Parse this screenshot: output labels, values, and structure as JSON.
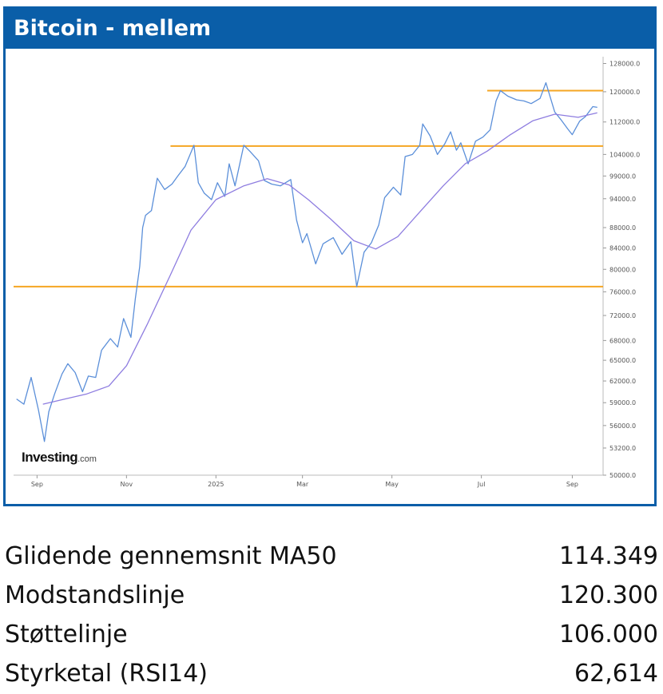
{
  "header": {
    "title": "Bitcoin - mellem"
  },
  "logo": {
    "main": "Investing",
    "suffix": ".com"
  },
  "colors": {
    "header_bg": "#0a5ea8",
    "price_line": "#5b8fd9",
    "ma_line": "#8e7de0",
    "level_line": "#f5a623"
  },
  "chart_data": {
    "type": "line",
    "title": "",
    "xlabel": "",
    "ylabel": "",
    "ylim": [
      50000,
      130000
    ],
    "y_scale": "log",
    "x_tick_labels": [
      "Sep",
      "Nov",
      "2025",
      "Mar",
      "May",
      "Jul",
      "Sep"
    ],
    "x_tick_dates": [
      "2024-09-01",
      "2024-11-01",
      "2025-01-01",
      "2025-03-01",
      "2025-05-01",
      "2025-07-01",
      "2025-09-01"
    ],
    "xlim": [
      "2024-08-16",
      "2025-09-22"
    ],
    "y_tick_labels": [
      "128000.0",
      "120000.0",
      "112000.0",
      "104000.0",
      "99000.0",
      "94000.0",
      "88000.0",
      "84000.0",
      "80000.0",
      "76000.0",
      "72000.0",
      "68000.0",
      "65000.0",
      "62000.0",
      "59000.0",
      "56000.0",
      "53200.0",
      "50000.0"
    ],
    "y_tick_values": [
      128000,
      120000,
      112000,
      104000,
      99000,
      94000,
      88000,
      84000,
      80000,
      76000,
      72000,
      68000,
      65000,
      62000,
      59000,
      56000,
      53200,
      50000
    ],
    "horizontal_levels": [
      {
        "y": 120300,
        "from": "2025-07-05",
        "to": "2025-09-22"
      },
      {
        "y": 106000,
        "from": "2024-12-01",
        "to": "2025-09-22"
      },
      {
        "y": 76900,
        "from": "2024-08-16",
        "to": "2025-09-22"
      }
    ],
    "series": [
      {
        "x": [
          "2024-08-18",
          "2024-08-23",
          "2024-08-28",
          "2024-09-02",
          "2024-09-06",
          "2024-09-09",
          "2024-09-13",
          "2024-09-18",
          "2024-09-22",
          "2024-09-27",
          "2024-10-02",
          "2024-10-06",
          "2024-10-11",
          "2024-10-15",
          "2024-10-21",
          "2024-10-26",
          "2024-10-30",
          "2024-11-04",
          "2024-11-07",
          "2024-11-10",
          "2024-11-12",
          "2024-11-14",
          "2024-11-18",
          "2024-11-22",
          "2024-11-27",
          "2024-12-02",
          "2024-12-06",
          "2024-12-11",
          "2024-12-15",
          "2024-12-17",
          "2024-12-20",
          "2024-12-24",
          "2024-12-29",
          "2025-01-02",
          "2025-01-07",
          "2025-01-10",
          "2025-01-14",
          "2025-01-20",
          "2025-01-24",
          "2025-01-30",
          "2025-02-03",
          "2025-02-08",
          "2025-02-14",
          "2025-02-21",
          "2025-02-25",
          "2025-03-01",
          "2025-03-04",
          "2025-03-10",
          "2025-03-15",
          "2025-03-22",
          "2025-03-28",
          "2025-04-03",
          "2025-04-07",
          "2025-04-12",
          "2025-04-17",
          "2025-04-22",
          "2025-04-26",
          "2025-05-02",
          "2025-05-07",
          "2025-05-10",
          "2025-05-15",
          "2025-05-20",
          "2025-05-22",
          "2025-05-27",
          "2025-06-01",
          "2025-06-06",
          "2025-06-10",
          "2025-06-14",
          "2025-06-17",
          "2025-06-22",
          "2025-06-27",
          "2025-07-02",
          "2025-07-07",
          "2025-07-11",
          "2025-07-14",
          "2025-07-19",
          "2025-07-25",
          "2025-07-30",
          "2025-08-04",
          "2025-08-10",
          "2025-08-14",
          "2025-08-20",
          "2025-08-24",
          "2025-08-29",
          "2025-09-01",
          "2025-09-06",
          "2025-09-10",
          "2025-09-15",
          "2025-09-18"
        ],
        "y": [
          59500,
          58800,
          62500,
          58000,
          54000,
          57800,
          60200,
          63000,
          64500,
          63200,
          60500,
          62700,
          62500,
          66500,
          68300,
          67000,
          71500,
          68500,
          74800,
          80500,
          88000,
          90500,
          91500,
          98500,
          96000,
          97200,
          99000,
          101200,
          104500,
          106200,
          97500,
          95200,
          93800,
          97500,
          94500,
          101800,
          96800,
          106200,
          104800,
          102500,
          98000,
          97200,
          96800,
          98200,
          89500,
          85000,
          86800,
          81000,
          84800,
          86000,
          82800,
          85200,
          76900,
          83200,
          85000,
          88500,
          94200,
          96500,
          94800,
          103500,
          104000,
          106200,
          111500,
          108500,
          104000,
          106500,
          109500,
          105000,
          106800,
          101800,
          107200,
          108200,
          110000,
          117500,
          120300,
          118800,
          117800,
          117500,
          116800,
          118200,
          122500,
          114600,
          112700,
          110200,
          108800,
          112200,
          113400,
          116000,
          115800
        ]
      },
      {
        "x": [
          "2024-09-05",
          "2024-09-20",
          "2024-10-05",
          "2024-10-20",
          "2024-11-01",
          "2024-11-15",
          "2024-12-01",
          "2024-12-15",
          "2025-01-01",
          "2025-01-20",
          "2025-02-05",
          "2025-02-20",
          "2025-03-05",
          "2025-03-20",
          "2025-04-05",
          "2025-04-20",
          "2025-05-05",
          "2025-05-20",
          "2025-06-05",
          "2025-06-20",
          "2025-07-05",
          "2025-07-20",
          "2025-08-05",
          "2025-08-20",
          "2025-09-05",
          "2025-09-18"
        ],
        "y": [
          58800,
          59500,
          60200,
          61300,
          64200,
          70500,
          79000,
          87500,
          93800,
          96800,
          98400,
          97000,
          93800,
          89800,
          85400,
          83800,
          86200,
          91200,
          96800,
          101800,
          104800,
          108600,
          112300,
          114000,
          113200,
          114349
        ]
      }
    ]
  },
  "stats": [
    {
      "label": "Glidende gennemsnit MA50",
      "value": "114.349"
    },
    {
      "label": "Modstandslinje",
      "value": "120.300"
    },
    {
      "label": "Støttelinje",
      "value": "106.000"
    },
    {
      "label": "Styrketal (RSI14)",
      "value": "62,614"
    }
  ]
}
